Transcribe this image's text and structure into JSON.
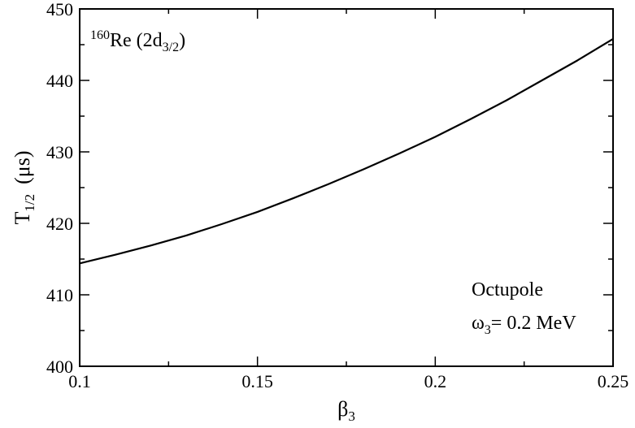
{
  "chart_data": {
    "type": "line",
    "title": "",
    "xlabel": {
      "main": "β",
      "sub": "3"
    },
    "ylabel": {
      "main": "T",
      "sub": "1/2",
      "unit": "(μs)"
    },
    "xlim": [
      0.1,
      0.25
    ],
    "ylim": [
      400,
      450
    ],
    "grid": false,
    "xticks": {
      "values": [
        0.1,
        0.15,
        0.2,
        0.25
      ],
      "labels": [
        "0.1",
        "0.15",
        "0.2",
        "0.25"
      ]
    },
    "yticks": {
      "values": [
        400,
        410,
        420,
        430,
        440,
        450
      ],
      "labels": [
        "400",
        "410",
        "420",
        "430",
        "440",
        "450"
      ]
    },
    "x_minor_step": 0.025,
    "y_minor_step": 5,
    "series": [
      {
        "color": "#000000",
        "x": [
          0.1,
          0.11,
          0.12,
          0.13,
          0.14,
          0.15,
          0.16,
          0.17,
          0.18,
          0.19,
          0.2,
          0.21,
          0.22,
          0.23,
          0.24,
          0.25
        ],
        "y": [
          414.4,
          415.6,
          416.9,
          418.3,
          419.9,
          421.6,
          423.5,
          425.5,
          427.6,
          429.8,
          432.1,
          434.6,
          437.2,
          440.0,
          442.8,
          445.8
        ]
      }
    ],
    "annotations": {
      "nucleus": {
        "mass": "160",
        "element": "Re",
        "state_open": " (2d",
        "state_sub": "3/2",
        "state_close": ")"
      },
      "mode": "Octupole",
      "omega": {
        "symbol": "ω",
        "sub": "3",
        "value": "= 0.2 MeV"
      }
    }
  }
}
